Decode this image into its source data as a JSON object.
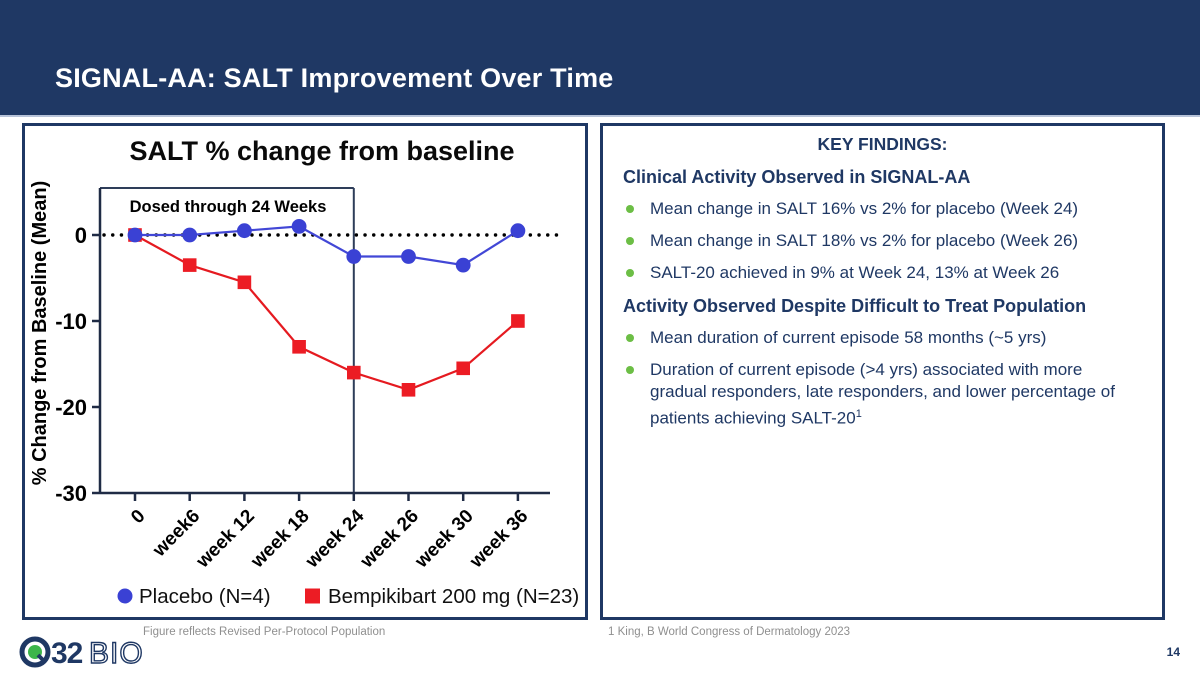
{
  "header": {
    "title": "SIGNAL-AA: SALT Improvement Over Time"
  },
  "chart_data": {
    "type": "line",
    "title": "SALT % change from baseline",
    "ylabel": "% Change from Baseline (Mean)",
    "xlabel": "",
    "categories": [
      "0",
      "week6",
      "week 12",
      "week 18",
      "week 24",
      "week 26",
      "week 30",
      "week 36"
    ],
    "series": [
      {
        "name": "Placebo (N=4)",
        "marker": "circle",
        "color": "#3a41d4",
        "line_color": "#4247d6",
        "values": [
          0,
          0,
          0.5,
          1,
          -2.5,
          -2.5,
          -3.5,
          0.5
        ]
      },
      {
        "name": "Bempikibart 200 mg (N=23)",
        "marker": "square",
        "color": "#ec1c24",
        "line_color": "#e51a20",
        "values": [
          0,
          -3.5,
          -5.5,
          -13,
          -16,
          -18,
          -15.5,
          -10
        ]
      }
    ],
    "yticks": [
      0,
      -10,
      -20,
      -30
    ],
    "ylim": [
      -30,
      6
    ],
    "zero_line": "dotted",
    "grid": "off",
    "legend_position": "bottom",
    "annotation": {
      "label": "Dosed through 24 Weeks",
      "x_start": "0",
      "x_end": "week 24"
    }
  },
  "key_findings": {
    "heading": "KEY FINDINGS:",
    "sections": [
      {
        "heading": "Clinical Activity Observed in SIGNAL-AA",
        "bullets": [
          {
            "text": "Mean change in SALT 16% vs 2% for placebo (Week 24)"
          },
          {
            "text": "Mean change in SALT 18% vs 2% for placebo (Week 26)"
          },
          {
            "text": "SALT-20 achieved in 9% at Week 24, 13% at Week 26"
          }
        ]
      },
      {
        "heading": "Activity Observed Despite Difficult to Treat Population",
        "bullets": [
          {
            "text": "Mean duration of current episode 58 months (~5 yrs)"
          },
          {
            "text": "Duration of current episode (>4 yrs) associated with more gradual responders, late responders, and lower percentage of patients achieving SALT-20",
            "sup": "1"
          }
        ]
      }
    ]
  },
  "footer": {
    "left_note": "Figure reflects Revised Per-Protocol Population",
    "right_note": "1 King, B World Congress of Dermatology 2023",
    "page_number": "14",
    "logo_number": "32",
    "logo_suffix": "BIO"
  },
  "colors": {
    "navy": "#1f3864",
    "header_divider": "#b7c3d9",
    "bullet_green": "#6cbe45",
    "placebo_blue": "#3a41d4",
    "bempikibart_red": "#ec1c24",
    "footnote_gray": "#8f8f8f",
    "logo_green": "#3cb54a"
  }
}
